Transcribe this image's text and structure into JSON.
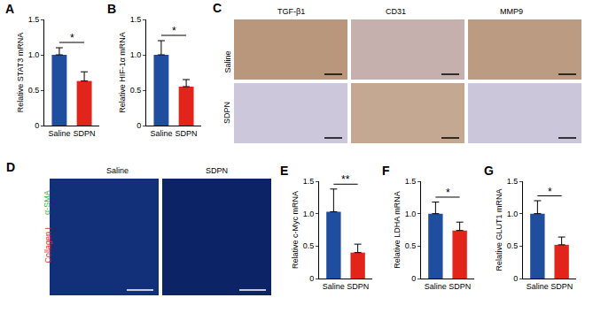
{
  "chart_data": [
    {
      "panel": "A",
      "type": "bar",
      "y_label": "Relative STAT3 mRNA",
      "categories": [
        "Saline",
        "SDPN"
      ],
      "values": [
        1.0,
        0.63
      ],
      "errors": [
        0.1,
        0.13
      ],
      "colors": [
        "#1f4e9f",
        "#e3241b"
      ],
      "ylim": [
        0,
        1.5
      ],
      "yticks": [
        0,
        0.5,
        {
          "value": 1,
          "label": "1.0"
        },
        1.5
      ],
      "significance": "*"
    },
    {
      "panel": "B",
      "type": "bar",
      "y_label": "Relative HIF-1α mRNA",
      "categories": [
        "Saline",
        "SDPN"
      ],
      "values": [
        1.0,
        0.55
      ],
      "errors": [
        0.2,
        0.1
      ],
      "colors": [
        "#1f4e9f",
        "#e3241b"
      ],
      "ylim": [
        0,
        1.5
      ],
      "yticks": [
        0,
        0.5,
        {
          "value": 1,
          "label": "1.0"
        },
        1.5
      ],
      "significance": "*"
    },
    {
      "panel": "E",
      "type": "bar",
      "y_label": "Relative c-Myc mRNA",
      "categories": [
        "Saline",
        "SDPN"
      ],
      "values": [
        1.03,
        0.4
      ],
      "errors": [
        0.35,
        0.13
      ],
      "colors": [
        "#1f4e9f",
        "#e3241b"
      ],
      "ylim": [
        0,
        1.5
      ],
      "yticks": [
        0,
        0.5,
        {
          "value": 1,
          "label": "1.0"
        },
        1.5
      ],
      "significance": "**"
    },
    {
      "panel": "F",
      "type": "bar",
      "y_label": "Relative LDHA mRNA",
      "categories": [
        "Saline",
        "SDPN"
      ],
      "values": [
        1.0,
        0.74
      ],
      "errors": [
        0.18,
        0.13
      ],
      "colors": [
        "#1f4e9f",
        "#e3241b"
      ],
      "ylim": [
        0,
        1.5
      ],
      "yticks": [
        0,
        0.5,
        {
          "value": 1,
          "label": "1.0"
        },
        1.5
      ],
      "significance": "*"
    },
    {
      "panel": "G",
      "type": "bar",
      "y_label": "Relative GLUT1 mRNA",
      "categories": [
        "Saline",
        "SDPN"
      ],
      "values": [
        1.0,
        0.52
      ],
      "errors": [
        0.2,
        0.12
      ],
      "colors": [
        "#1f4e9f",
        "#e3241b"
      ],
      "ylim": [
        0,
        1.5
      ],
      "yticks": [
        0,
        0.5,
        {
          "value": 1,
          "label": "1.0"
        },
        1.5
      ],
      "significance": "*"
    }
  ],
  "images": [
    {
      "panel": "C",
      "columns": [
        "TGF-β1",
        "CD31",
        "MMP9"
      ],
      "rows": [
        "Saline",
        "SDPN"
      ]
    },
    {
      "panel": "D",
      "columns": [
        "Saline",
        "SDPN"
      ],
      "stains": [
        {
          "name": "Collagen I",
          "color": "#e3241b"
        },
        {
          "name": "α-SMA",
          "color": "#2fbf3a"
        }
      ]
    }
  ]
}
